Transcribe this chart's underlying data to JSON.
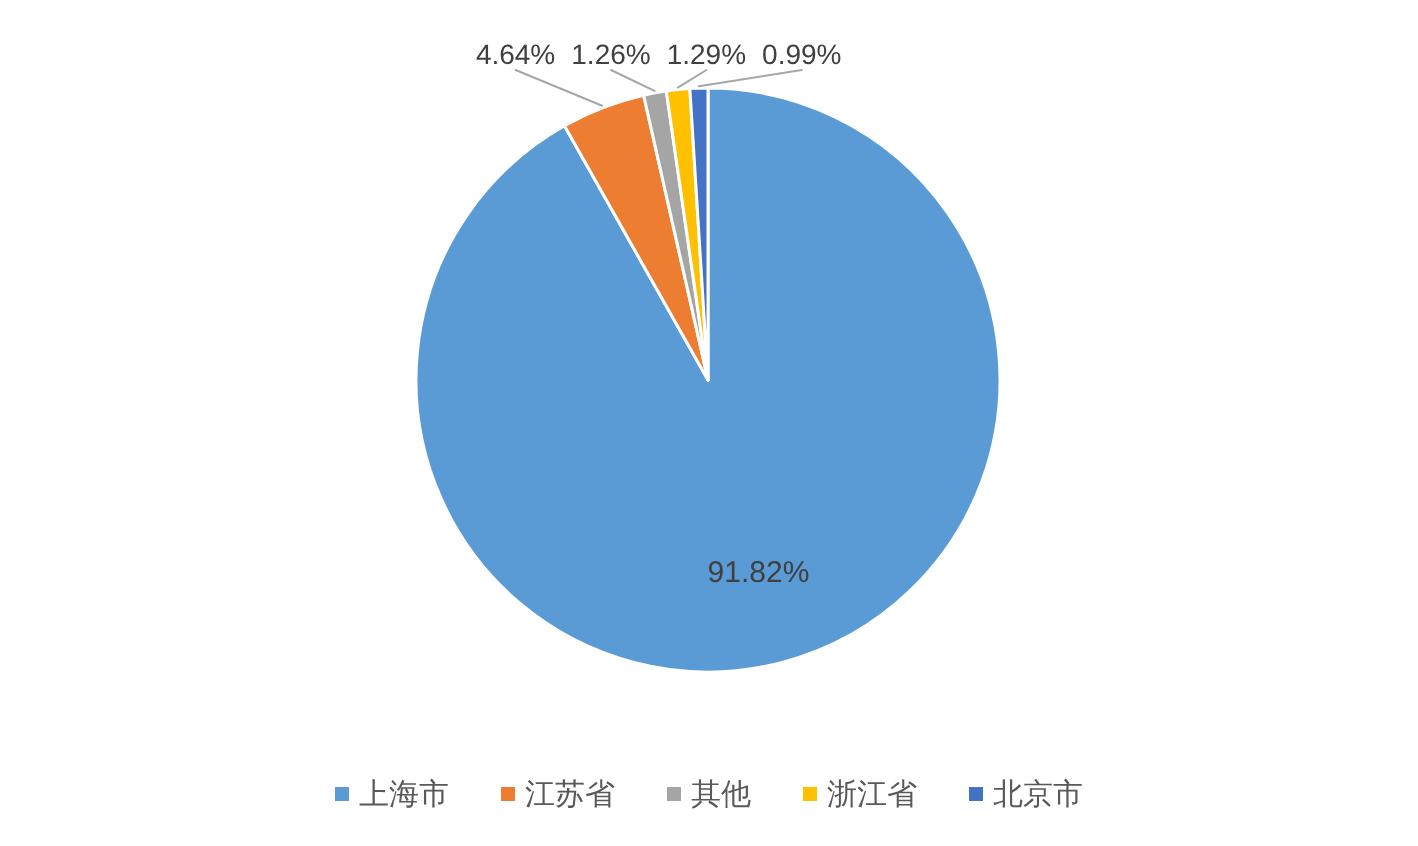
{
  "chart_data": {
    "type": "pie",
    "categories": [
      "上海市",
      "江苏省",
      "其他",
      "浙江省",
      "北京市"
    ],
    "values": [
      91.82,
      4.64,
      1.26,
      1.29,
      0.99
    ],
    "colors": [
      "#5b9bd5",
      "#ed7d31",
      "#a5a5a5",
      "#ffc000",
      "#4472c4"
    ],
    "value_labels": [
      "91.82%",
      "4.64%",
      "1.26%",
      "1.29%",
      "0.99%"
    ],
    "legend": "bottom"
  }
}
